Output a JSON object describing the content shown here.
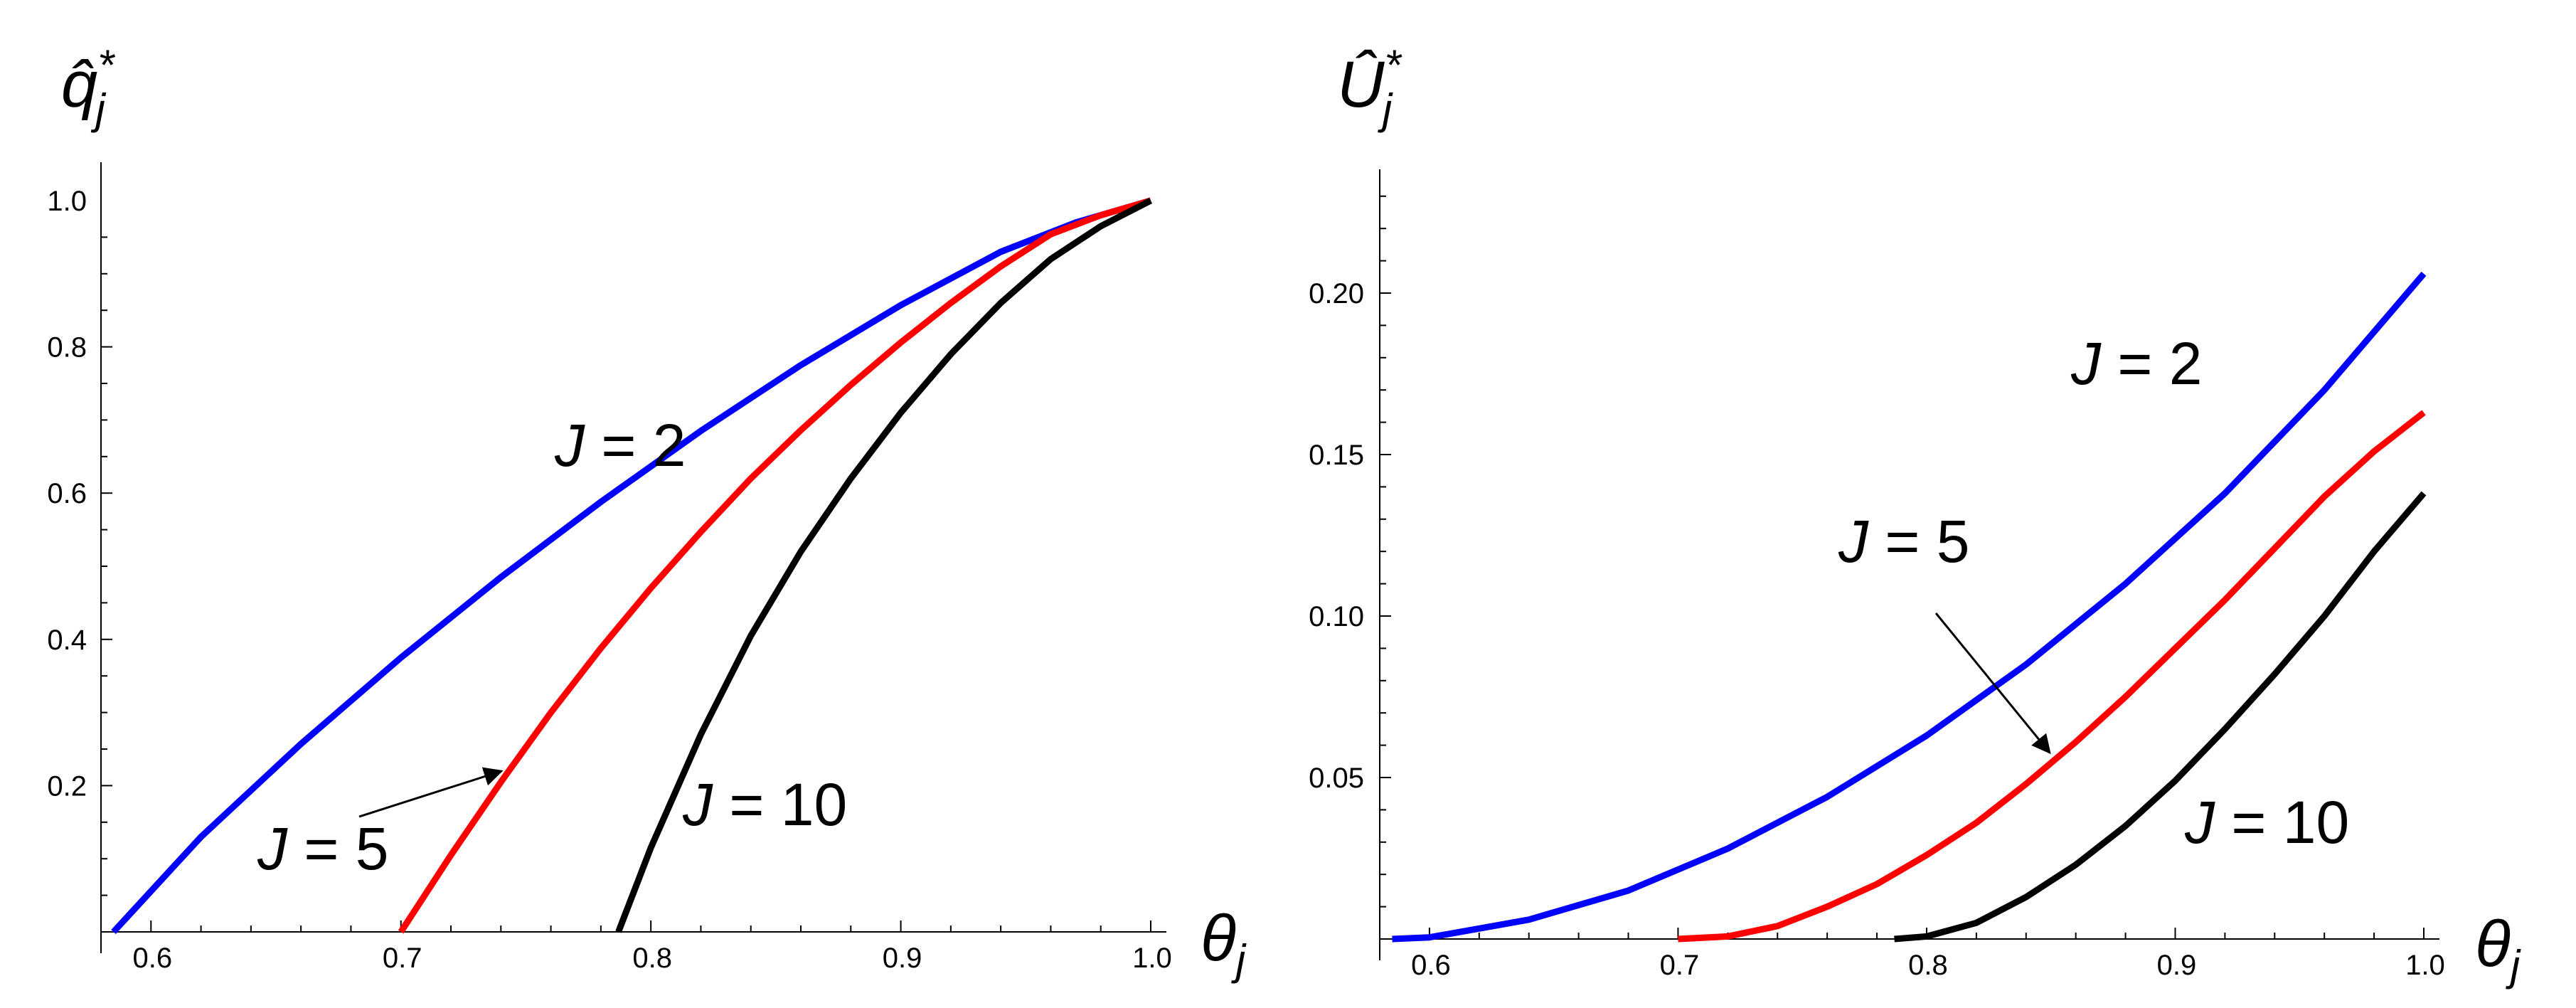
{
  "chart_data": [
    {
      "type": "line",
      "ylabel": "q̂*j",
      "ylabel_main": "q̂",
      "ylabel_sup": "*",
      "ylabel_sub": "j",
      "xlabel": "θj",
      "xlabel_main": "θ",
      "xlabel_sub": "j",
      "xlim": [
        0.58,
        1.0
      ],
      "ylim": [
        0,
        1.0
      ],
      "x_ticks": [
        "0.6",
        "0.7",
        "0.8",
        "0.9",
        "1.0"
      ],
      "y_ticks": [
        "0.2",
        "0.4",
        "0.6",
        "0.8",
        "1.0"
      ],
      "series": [
        {
          "name": "J = 2",
          "label_parts": [
            "J",
            " = 2"
          ],
          "color": "#0000ff",
          "x": [
            0.585,
            0.62,
            0.66,
            0.7,
            0.74,
            0.78,
            0.82,
            0.86,
            0.9,
            0.94,
            0.97,
            1.0
          ],
          "y": [
            0.0,
            0.13,
            0.257,
            0.375,
            0.485,
            0.588,
            0.685,
            0.775,
            0.857,
            0.93,
            0.97,
            1.0
          ]
        },
        {
          "name": "J = 5",
          "label_parts": [
            "J",
            " = 5"
          ],
          "color": "#ff0000",
          "x": [
            0.7,
            0.72,
            0.74,
            0.76,
            0.78,
            0.8,
            0.82,
            0.84,
            0.86,
            0.88,
            0.9,
            0.92,
            0.94,
            0.96,
            0.98,
            1.0
          ],
          "y": [
            0.0,
            0.105,
            0.205,
            0.3,
            0.388,
            0.47,
            0.547,
            0.62,
            0.686,
            0.748,
            0.806,
            0.86,
            0.91,
            0.954,
            0.98,
            1.0
          ]
        },
        {
          "name": "J = 10",
          "label_parts": [
            "J",
            " = 10"
          ],
          "color": "#000000",
          "x": [
            0.787,
            0.8,
            0.82,
            0.84,
            0.86,
            0.88,
            0.9,
            0.92,
            0.94,
            0.96,
            0.98,
            1.0
          ],
          "y": [
            0.0,
            0.115,
            0.27,
            0.405,
            0.52,
            0.62,
            0.71,
            0.79,
            0.86,
            0.92,
            0.965,
            1.0
          ]
        }
      ]
    },
    {
      "type": "line",
      "ylabel": "Û*j",
      "ylabel_main": "Û",
      "ylabel_sup": "*",
      "ylabel_sub": "j",
      "xlabel": "θj",
      "xlabel_main": "θ",
      "xlabel_sub": "j",
      "xlim": [
        0.58,
        1.0
      ],
      "ylim": [
        0,
        0.22
      ],
      "x_ticks": [
        "0.6",
        "0.7",
        "0.8",
        "0.9",
        "1.0"
      ],
      "y_ticks": [
        "0.05",
        "0.10",
        "0.15",
        "0.20"
      ],
      "series": [
        {
          "name": "J = 2",
          "label_parts": [
            "J",
            " = 2"
          ],
          "color": "#0000ff",
          "x": [
            0.585,
            0.6,
            0.64,
            0.68,
            0.72,
            0.76,
            0.8,
            0.84,
            0.88,
            0.92,
            0.96,
            1.0
          ],
          "y": [
            0.0,
            0.0005,
            0.006,
            0.015,
            0.028,
            0.044,
            0.063,
            0.085,
            0.11,
            0.138,
            0.17,
            0.206
          ]
        },
        {
          "name": "J = 5",
          "label_parts": [
            "J",
            " = 5"
          ],
          "color": "#ff0000",
          "x": [
            0.7,
            0.72,
            0.74,
            0.76,
            0.78,
            0.8,
            0.82,
            0.84,
            0.86,
            0.88,
            0.9,
            0.92,
            0.94,
            0.96,
            0.98,
            1.0
          ],
          "y": [
            0.0,
            0.0008,
            0.004,
            0.01,
            0.017,
            0.026,
            0.036,
            0.048,
            0.061,
            0.075,
            0.09,
            0.105,
            0.121,
            0.137,
            0.151,
            0.163
          ]
        },
        {
          "name": "J = 10",
          "label_parts": [
            "J",
            " = 10"
          ],
          "color": "#000000",
          "x": [
            0.787,
            0.8,
            0.82,
            0.84,
            0.86,
            0.88,
            0.9,
            0.92,
            0.94,
            0.96,
            0.98,
            1.0
          ],
          "y": [
            0.0,
            0.0008,
            0.005,
            0.013,
            0.023,
            0.035,
            0.049,
            0.065,
            0.082,
            0.1,
            0.12,
            0.138
          ]
        }
      ]
    }
  ]
}
